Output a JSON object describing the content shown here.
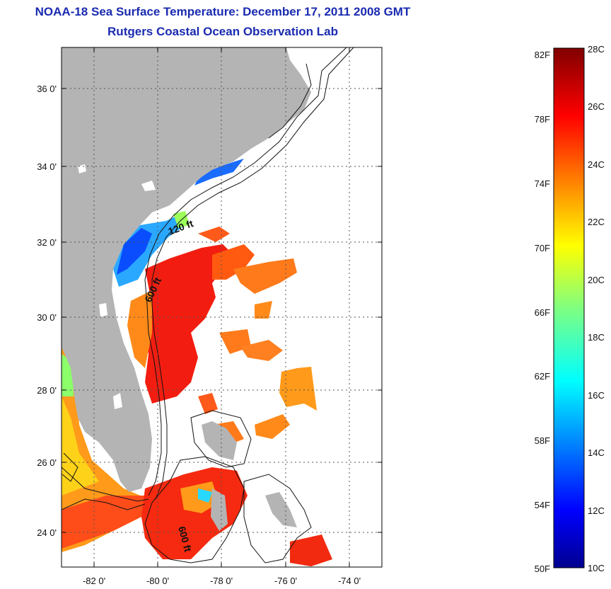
{
  "title": "NOAA-18 Sea Surface Temperature:  December 17, 2011 2008 GMT",
  "subtitle": "Rutgers Coastal Ocean Observation Lab",
  "map": {
    "lon_ticks": [
      "-82 0'",
      "-80 0'",
      "-78 0'",
      "-76 0'",
      "-74 0'"
    ],
    "lat_ticks": [
      "36 0'",
      "34 0'",
      "32 0'",
      "30 0'",
      "28 0'",
      "26 0'",
      "24 0'"
    ],
    "lon_range": [
      -83,
      -73
    ],
    "lat_range": [
      23,
      37
    ],
    "contour_labels": [
      "120 ft",
      "600 ft",
      "600 ft"
    ],
    "colors": {
      "land": "#b4b4b4",
      "ocean_nodata": "#ffffff",
      "grid": "#555555"
    }
  },
  "colorbar": {
    "fahrenheit_labels": [
      "82F",
      "78F",
      "74F",
      "70F",
      "66F",
      "62F",
      "58F",
      "54F",
      "50F"
    ],
    "celsius_labels": [
      "28C",
      "26C",
      "24C",
      "22C",
      "20C",
      "18C",
      "16C",
      "14C",
      "12C",
      "10C"
    ],
    "range_c": [
      10,
      28
    ],
    "range_f": [
      50,
      82.4
    ],
    "colormap": "jet"
  }
}
